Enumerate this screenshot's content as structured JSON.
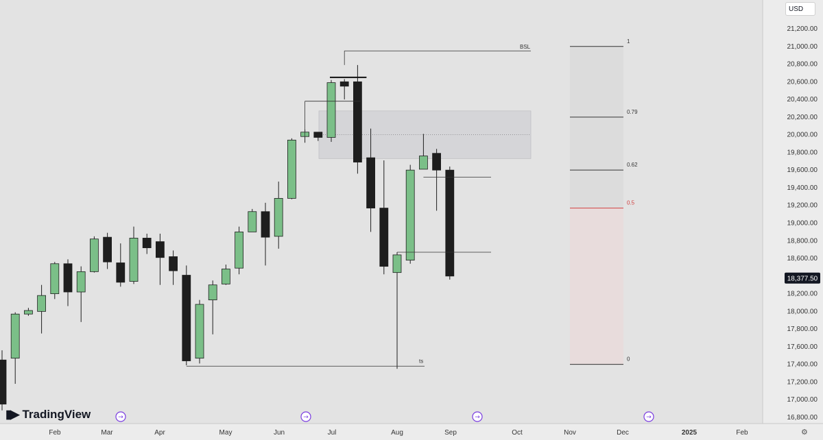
{
  "header": {
    "currency": "USD"
  },
  "branding": {
    "logo_text": "TradingView"
  },
  "chart_data": {
    "type": "candlestick",
    "price_scale": {
      "min": 16800,
      "max": 21200,
      "ticks": [
        "21,200.00",
        "21,000.00",
        "20,800.00",
        "20,600.00",
        "20,400.00",
        "20,200.00",
        "20,000.00",
        "19,800.00",
        "19,600.00",
        "19,400.00",
        "19,200.00",
        "19,000.00",
        "18,800.00",
        "18,600.00",
        "18,400.00",
        "18,200.00",
        "18,000.00",
        "17,800.00",
        "17,600.00",
        "17,400.00",
        "17,200.00",
        "17,000.00",
        "16,800.00"
      ],
      "last_price": "18,377.50"
    },
    "time_axis": [
      "Feb",
      "Mar",
      "Apr",
      "May",
      "Jun",
      "Jul",
      "Aug",
      "Sep",
      "Oct",
      "Nov",
      "Dec",
      "2025",
      "Feb"
    ],
    "candles": [
      {
        "o": 17450,
        "h": 17560,
        "l": 16880,
        "c": 16950
      },
      {
        "o": 17470,
        "h": 17990,
        "l": 17180,
        "c": 17970
      },
      {
        "o": 17970,
        "h": 18040,
        "l": 17950,
        "c": 18010
      },
      {
        "o": 18000,
        "h": 18300,
        "l": 17750,
        "c": 18180
      },
      {
        "o": 18200,
        "h": 18560,
        "l": 18140,
        "c": 18540
      },
      {
        "o": 18540,
        "h": 18590,
        "l": 18060,
        "c": 18220
      },
      {
        "o": 18220,
        "h": 18510,
        "l": 17880,
        "c": 18450
      },
      {
        "o": 18450,
        "h": 18850,
        "l": 18440,
        "c": 18820
      },
      {
        "o": 18840,
        "h": 18890,
        "l": 18480,
        "c": 18560
      },
      {
        "o": 18550,
        "h": 18770,
        "l": 18280,
        "c": 18330
      },
      {
        "o": 18340,
        "h": 18960,
        "l": 18310,
        "c": 18830
      },
      {
        "o": 18830,
        "h": 18880,
        "l": 18650,
        "c": 18720
      },
      {
        "o": 18790,
        "h": 18880,
        "l": 18300,
        "c": 18610
      },
      {
        "o": 18620,
        "h": 18690,
        "l": 18300,
        "c": 18460
      },
      {
        "o": 18410,
        "h": 18520,
        "l": 17390,
        "c": 17440
      },
      {
        "o": 17470,
        "h": 18130,
        "l": 17410,
        "c": 18080
      },
      {
        "o": 18130,
        "h": 18350,
        "l": 17740,
        "c": 18300
      },
      {
        "o": 18310,
        "h": 18530,
        "l": 18300,
        "c": 18480
      },
      {
        "o": 18490,
        "h": 18960,
        "l": 18420,
        "c": 18900
      },
      {
        "o": 18900,
        "h": 19160,
        "l": 18900,
        "c": 19130
      },
      {
        "o": 19130,
        "h": 19230,
        "l": 18520,
        "c": 18840
      },
      {
        "o": 18850,
        "h": 19470,
        "l": 18710,
        "c": 19280
      },
      {
        "o": 19280,
        "h": 19960,
        "l": 19270,
        "c": 19940
      },
      {
        "o": 19980,
        "h": 20060,
        "l": 19910,
        "c": 20030
      },
      {
        "o": 20030,
        "h": 20010,
        "l": 19930,
        "c": 19970
      },
      {
        "o": 19970,
        "h": 20620,
        "l": 19920,
        "c": 20590
      },
      {
        "o": 20600,
        "h": 20630,
        "l": 20400,
        "c": 20550
      },
      {
        "o": 20600,
        "h": 20790,
        "l": 19560,
        "c": 19690
      },
      {
        "o": 19740,
        "h": 20070,
        "l": 18900,
        "c": 19170
      },
      {
        "o": 19170,
        "h": 19710,
        "l": 18420,
        "c": 18510
      },
      {
        "o": 18440,
        "h": 18670,
        "l": 17350,
        "c": 18640
      },
      {
        "o": 18580,
        "h": 19660,
        "l": 18540,
        "c": 19600
      },
      {
        "o": 19610,
        "h": 20010,
        "l": 19620,
        "c": 19760
      },
      {
        "o": 19790,
        "h": 19840,
        "l": 19140,
        "c": 19600
      },
      {
        "o": 19600,
        "h": 19640,
        "l": 18360,
        "c": 18400
      }
    ],
    "annotations": {
      "bsl_label": "BSL",
      "ts_label": "ts",
      "fib_levels": [
        "1",
        "0.79",
        "0.62",
        "0.5",
        "0"
      ],
      "fib_values": [
        21000,
        20200,
        19600,
        19170,
        17400
      ]
    },
    "colors": {
      "up": "#7bbf88",
      "down": "#1e1e1e",
      "fib_half": "#d04040",
      "zone": "#d2d2d6",
      "background": "#e3e3e3"
    }
  }
}
